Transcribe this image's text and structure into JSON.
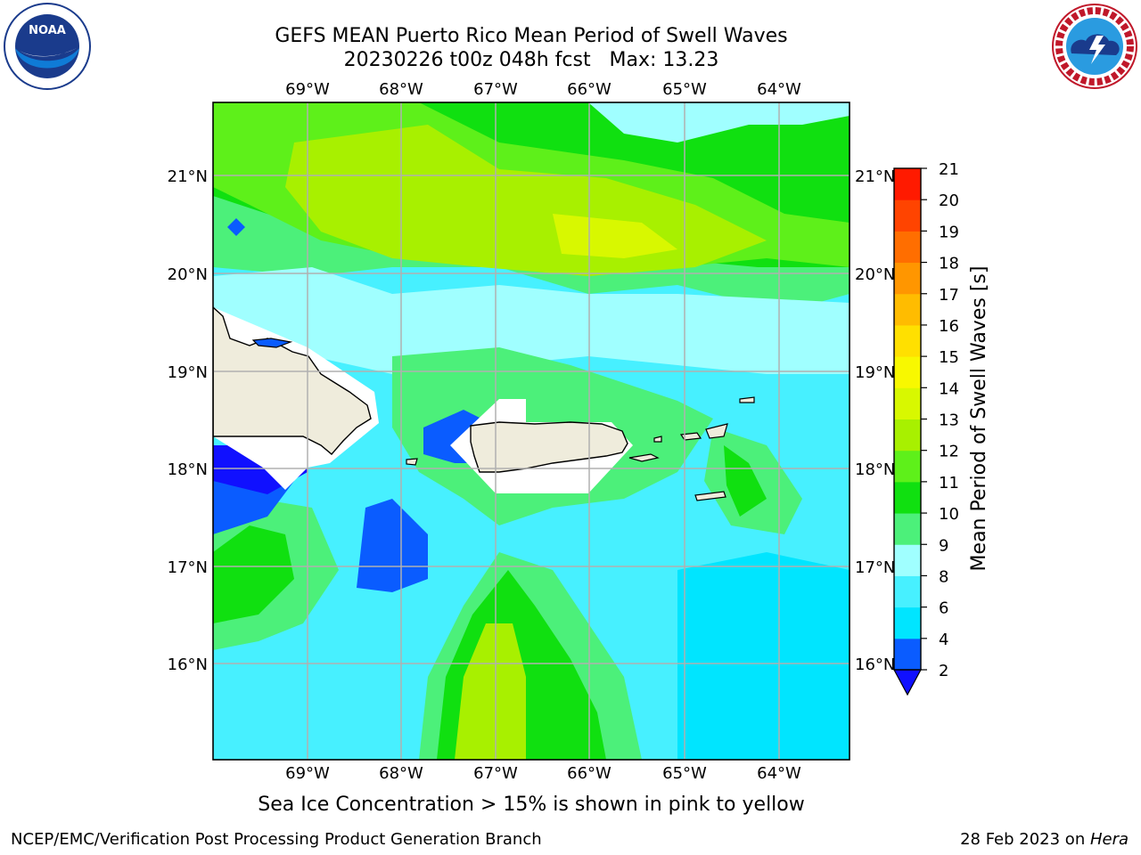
{
  "title_line1": "GEFS MEAN Puerto Rico Mean Period of Swell Waves",
  "title_line2": "20230226 t00z 048h fcst   Max: 13.23",
  "subtitle": "Sea Ice Concentration > 15% is shown in pink to yellow",
  "footer_left": "NCEP/EMC/Verification Post Processing Product Generation Branch",
  "footer_date": "28 Feb 2023 on ",
  "footer_machine": "Hera",
  "logos": {
    "left": "noaa-logo",
    "right": "nws-logo"
  },
  "map": {
    "lon_ticks": [
      "69°W",
      "68°W",
      "67°W",
      "66°W",
      "65°W",
      "64°W"
    ],
    "lat_ticks": [
      "21°N",
      "20°N",
      "19°N",
      "18°N",
      "17°N",
      "16°N"
    ],
    "lon_values": [
      -69,
      -68,
      -67,
      -66,
      -65,
      -64
    ],
    "lat_values": [
      21,
      20,
      19,
      18,
      17,
      16
    ]
  },
  "colorbar": {
    "label": "Mean Period of Swell Waves [s]",
    "tick_labels": [
      "2",
      "4",
      "6",
      "8",
      "9",
      "10",
      "11",
      "12",
      "13",
      "14",
      "15",
      "16",
      "17",
      "18",
      "19",
      "20",
      "21"
    ],
    "colors": [
      "#0a5cff",
      "#00e5ff",
      "#47f0ff",
      "#a0ffff",
      "#4cf07a",
      "#10e010",
      "#5ef01a",
      "#a8f000",
      "#d8f800",
      "#f8f800",
      "#ffe000",
      "#ffbc00",
      "#ff9600",
      "#ff6e00",
      "#ff4400",
      "#ff1a00"
    ],
    "under_color": "#1010ff"
  }
}
